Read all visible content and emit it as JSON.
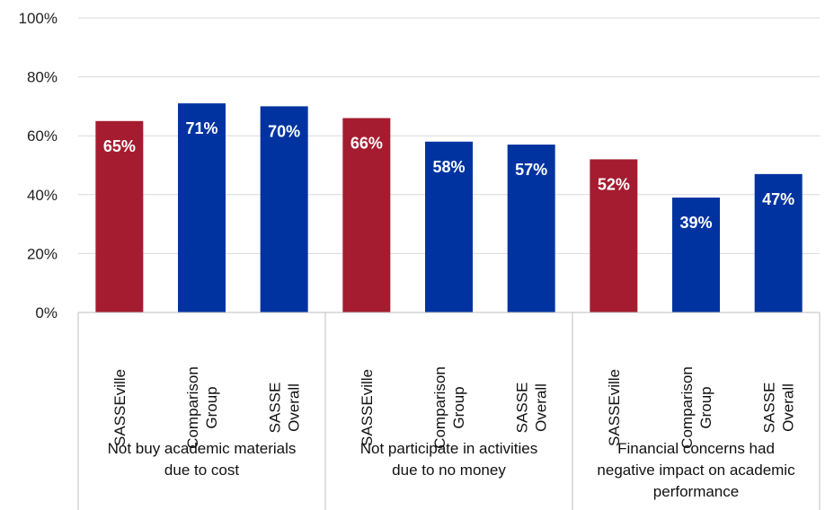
{
  "chart_data": {
    "type": "bar",
    "ylim": [
      0,
      100
    ],
    "y_ticks": [
      "0%",
      "20%",
      "40%",
      "60%",
      "80%",
      "100%"
    ],
    "grid": true,
    "legend": "none",
    "groups": [
      {
        "label_lines": [
          "Not buy academic materials",
          "due to cost"
        ],
        "bars": [
          {
            "label_lines": [
              "SASSEville"
            ],
            "value": 65,
            "label": "65%",
            "color": "#A51C30"
          },
          {
            "label_lines": [
              "Comparison",
              "Group"
            ],
            "value": 71,
            "label": "71%",
            "color": "#0033A0"
          },
          {
            "label_lines": [
              "SASSE",
              "Overall"
            ],
            "value": 70,
            "label": "70%",
            "color": "#0033A0"
          }
        ]
      },
      {
        "label_lines": [
          "Not participate in activities",
          "due to no money"
        ],
        "bars": [
          {
            "label_lines": [
              "SASSEville"
            ],
            "value": 66,
            "label": "66%",
            "color": "#A51C30"
          },
          {
            "label_lines": [
              "Comparison",
              "Group"
            ],
            "value": 58,
            "label": "58%",
            "color": "#0033A0"
          },
          {
            "label_lines": [
              "SASSE",
              "Overall"
            ],
            "value": 57,
            "label": "57%",
            "color": "#0033A0"
          }
        ]
      },
      {
        "label_lines": [
          "Financial concerns had",
          "negative impact on academic",
          "performance"
        ],
        "bars": [
          {
            "label_lines": [
              "SASSEville"
            ],
            "value": 52,
            "label": "52%",
            "color": "#A51C30"
          },
          {
            "label_lines": [
              "Comparison",
              "Group"
            ],
            "value": 39,
            "label": "39%",
            "color": "#0033A0"
          },
          {
            "label_lines": [
              "SASSE",
              "Overall"
            ],
            "value": 47,
            "label": "47%",
            "color": "#0033A0"
          }
        ]
      }
    ]
  }
}
